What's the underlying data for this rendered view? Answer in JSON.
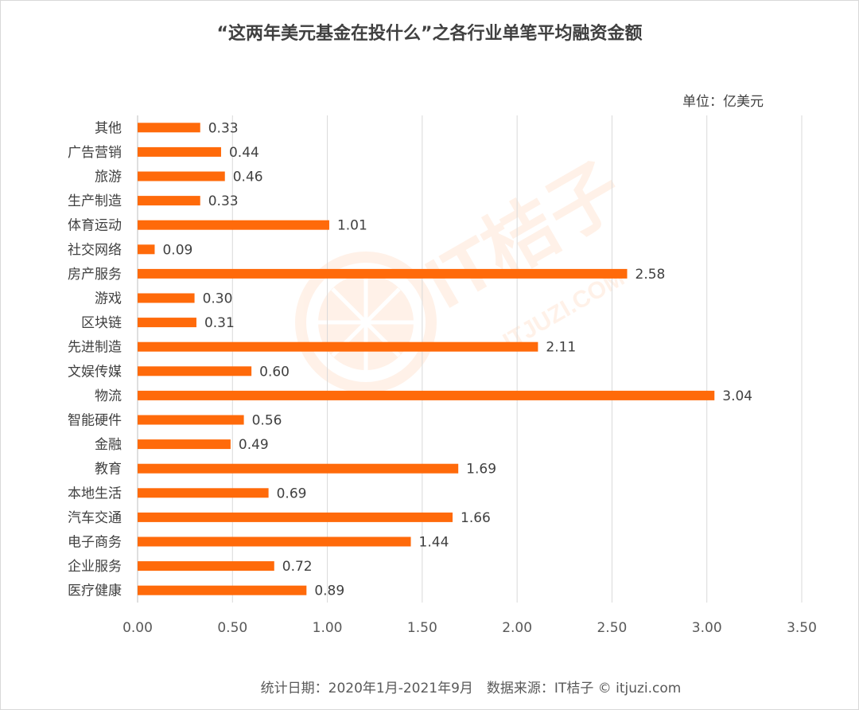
{
  "chart_data": {
    "type": "bar",
    "orientation": "horizontal",
    "title": "“这两年美元基金在投什么”之各行业单笔平均融资金额",
    "unit_label": "单位：亿美元",
    "categories": [
      "其他",
      "广告营销",
      "旅游",
      "生产制造",
      "体育运动",
      "社交网络",
      "房产服务",
      "游戏",
      "区块链",
      "先进制造",
      "文娱传媒",
      "物流",
      "智能硬件",
      "金融",
      "教育",
      "本地生活",
      "汽车交通",
      "电子商务",
      "企业服务",
      "医疗健康"
    ],
    "values": [
      0.33,
      0.44,
      0.46,
      0.33,
      1.01,
      0.09,
      2.58,
      0.3,
      0.31,
      2.11,
      0.6,
      3.04,
      0.56,
      0.49,
      1.69,
      0.69,
      1.66,
      1.44,
      0.72,
      0.89
    ],
    "value_labels": [
      "0.33",
      "0.44",
      "0.46",
      "0.33",
      "1.01",
      "0.09",
      "2.58",
      "0.30",
      "0.31",
      "2.11",
      "0.60",
      "3.04",
      "0.56",
      "0.49",
      "1.69",
      "0.69",
      "1.66",
      "1.44",
      "0.72",
      "0.89"
    ],
    "xlim": [
      0,
      3.5
    ],
    "xticks": [
      0,
      0.5,
      1.0,
      1.5,
      2.0,
      2.5,
      3.0,
      3.5
    ],
    "xtick_labels": [
      "0.00",
      "0.50",
      "1.00",
      "1.50",
      "2.00",
      "2.50",
      "3.00",
      "3.50"
    ],
    "grid": "vertical",
    "bar_color": "#FF6A0A",
    "footer": "统计日期：2020年1月-2021年9月　数据来源：IT桔子 © itjuzi.com",
    "watermark": "IT桔子 ITJUZI.COM"
  }
}
